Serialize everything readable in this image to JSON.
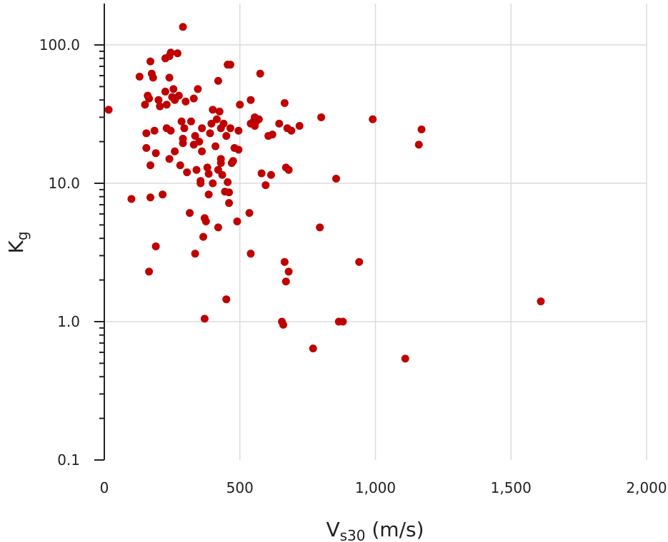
{
  "chart_data": {
    "type": "scatter",
    "title": "",
    "xlabel_main": "V",
    "xlabel_sub": "s30",
    "xlabel_unit": " (m/s)",
    "ylabel_main": "K",
    "ylabel_sub": "g",
    "xlim": [
      0,
      2000
    ],
    "ylim": [
      0.1,
      200
    ],
    "yscale": "log",
    "grid": true,
    "marker_color": "#c00000",
    "x_ticks": [
      0,
      500,
      1000,
      1500,
      2000
    ],
    "x_tick_labels": [
      "0",
      "500",
      "1,000",
      "1,500",
      "2,000"
    ],
    "y_ticks": [
      0.1,
      1,
      10,
      100
    ],
    "y_tick_labels": [
      "0.1",
      "1.0",
      "10.0",
      "100.0"
    ],
    "points": [
      [
        16,
        34
      ],
      [
        290,
        135
      ],
      [
        100,
        7.7
      ],
      [
        130,
        59
      ],
      [
        150,
        37
      ],
      [
        155,
        23
      ],
      [
        155,
        18
      ],
      [
        160,
        43
      ],
      [
        165,
        41
      ],
      [
        165,
        2.3
      ],
      [
        170,
        76
      ],
      [
        170,
        13.5
      ],
      [
        170,
        7.9
      ],
      [
        175,
        62
      ],
      [
        180,
        58
      ],
      [
        185,
        24
      ],
      [
        190,
        16.5
      ],
      [
        190,
        3.5
      ],
      [
        200,
        40
      ],
      [
        205,
        36
      ],
      [
        215,
        8.3
      ],
      [
        225,
        80
      ],
      [
        225,
        46
      ],
      [
        230,
        37
      ],
      [
        230,
        25
      ],
      [
        240,
        83
      ],
      [
        240,
        58
      ],
      [
        240,
        15
      ],
      [
        245,
        88
      ],
      [
        245,
        24
      ],
      [
        250,
        42
      ],
      [
        255,
        48
      ],
      [
        260,
        40
      ],
      [
        260,
        17
      ],
      [
        270,
        87
      ],
      [
        275,
        43
      ],
      [
        280,
        13.5
      ],
      [
        285,
        28
      ],
      [
        290,
        21
      ],
      [
        290,
        19.5
      ],
      [
        295,
        25
      ],
      [
        300,
        39
      ],
      [
        305,
        12
      ],
      [
        315,
        6.1
      ],
      [
        320,
        28
      ],
      [
        330,
        41
      ],
      [
        330,
        19
      ],
      [
        335,
        22
      ],
      [
        335,
        3.1
      ],
      [
        340,
        12.5
      ],
      [
        345,
        48
      ],
      [
        350,
        20
      ],
      [
        355,
        10.4
      ],
      [
        355,
        10
      ],
      [
        360,
        25
      ],
      [
        360,
        17
      ],
      [
        365,
        4.1
      ],
      [
        370,
        1.05
      ],
      [
        370,
        5.6
      ],
      [
        375,
        5.3
      ],
      [
        380,
        13
      ],
      [
        385,
        8.3
      ],
      [
        385,
        11.7
      ],
      [
        390,
        23
      ],
      [
        395,
        27
      ],
      [
        400,
        34
      ],
      [
        400,
        10
      ],
      [
        410,
        18.5
      ],
      [
        415,
        29
      ],
      [
        420,
        55
      ],
      [
        420,
        12.5
      ],
      [
        420,
        4.8
      ],
      [
        425,
        33
      ],
      [
        430,
        25
      ],
      [
        430,
        15
      ],
      [
        430,
        14
      ],
      [
        435,
        11.5
      ],
      [
        440,
        27
      ],
      [
        445,
        8.7
      ],
      [
        450,
        1.45
      ],
      [
        450,
        22
      ],
      [
        455,
        72
      ],
      [
        455,
        10.2
      ],
      [
        460,
        8.6
      ],
      [
        460,
        7.2
      ],
      [
        465,
        72
      ],
      [
        465,
        25
      ],
      [
        470,
        14
      ],
      [
        475,
        14.5
      ],
      [
        480,
        18
      ],
      [
        490,
        5.3
      ],
      [
        495,
        24
      ],
      [
        495,
        17.5
      ],
      [
        500,
        37
      ],
      [
        535,
        6.1
      ],
      [
        540,
        3.1
      ],
      [
        540,
        27
      ],
      [
        540,
        40
      ],
      [
        550,
        28
      ],
      [
        555,
        26
      ],
      [
        555,
        30
      ],
      [
        560,
        28
      ],
      [
        570,
        29
      ],
      [
        575,
        62
      ],
      [
        580,
        11.8
      ],
      [
        595,
        9.7
      ],
      [
        605,
        22
      ],
      [
        615,
        11.5
      ],
      [
        620,
        22.5
      ],
      [
        645,
        27
      ],
      [
        655,
        1.0
      ],
      [
        660,
        0.95
      ],
      [
        665,
        2.7
      ],
      [
        665,
        38
      ],
      [
        670,
        13
      ],
      [
        670,
        1.95
      ],
      [
        675,
        25
      ],
      [
        680,
        12.5
      ],
      [
        680,
        2.3
      ],
      [
        690,
        24
      ],
      [
        720,
        26
      ],
      [
        770,
        0.64
      ],
      [
        795,
        4.8
      ],
      [
        800,
        30
      ],
      [
        855,
        10.8
      ],
      [
        865,
        1.0
      ],
      [
        880,
        1.0
      ],
      [
        940,
        2.7
      ],
      [
        990,
        29
      ],
      [
        1110,
        0.54
      ],
      [
        1160,
        19
      ],
      [
        1170,
        24.5
      ],
      [
        1610,
        1.4
      ]
    ]
  }
}
